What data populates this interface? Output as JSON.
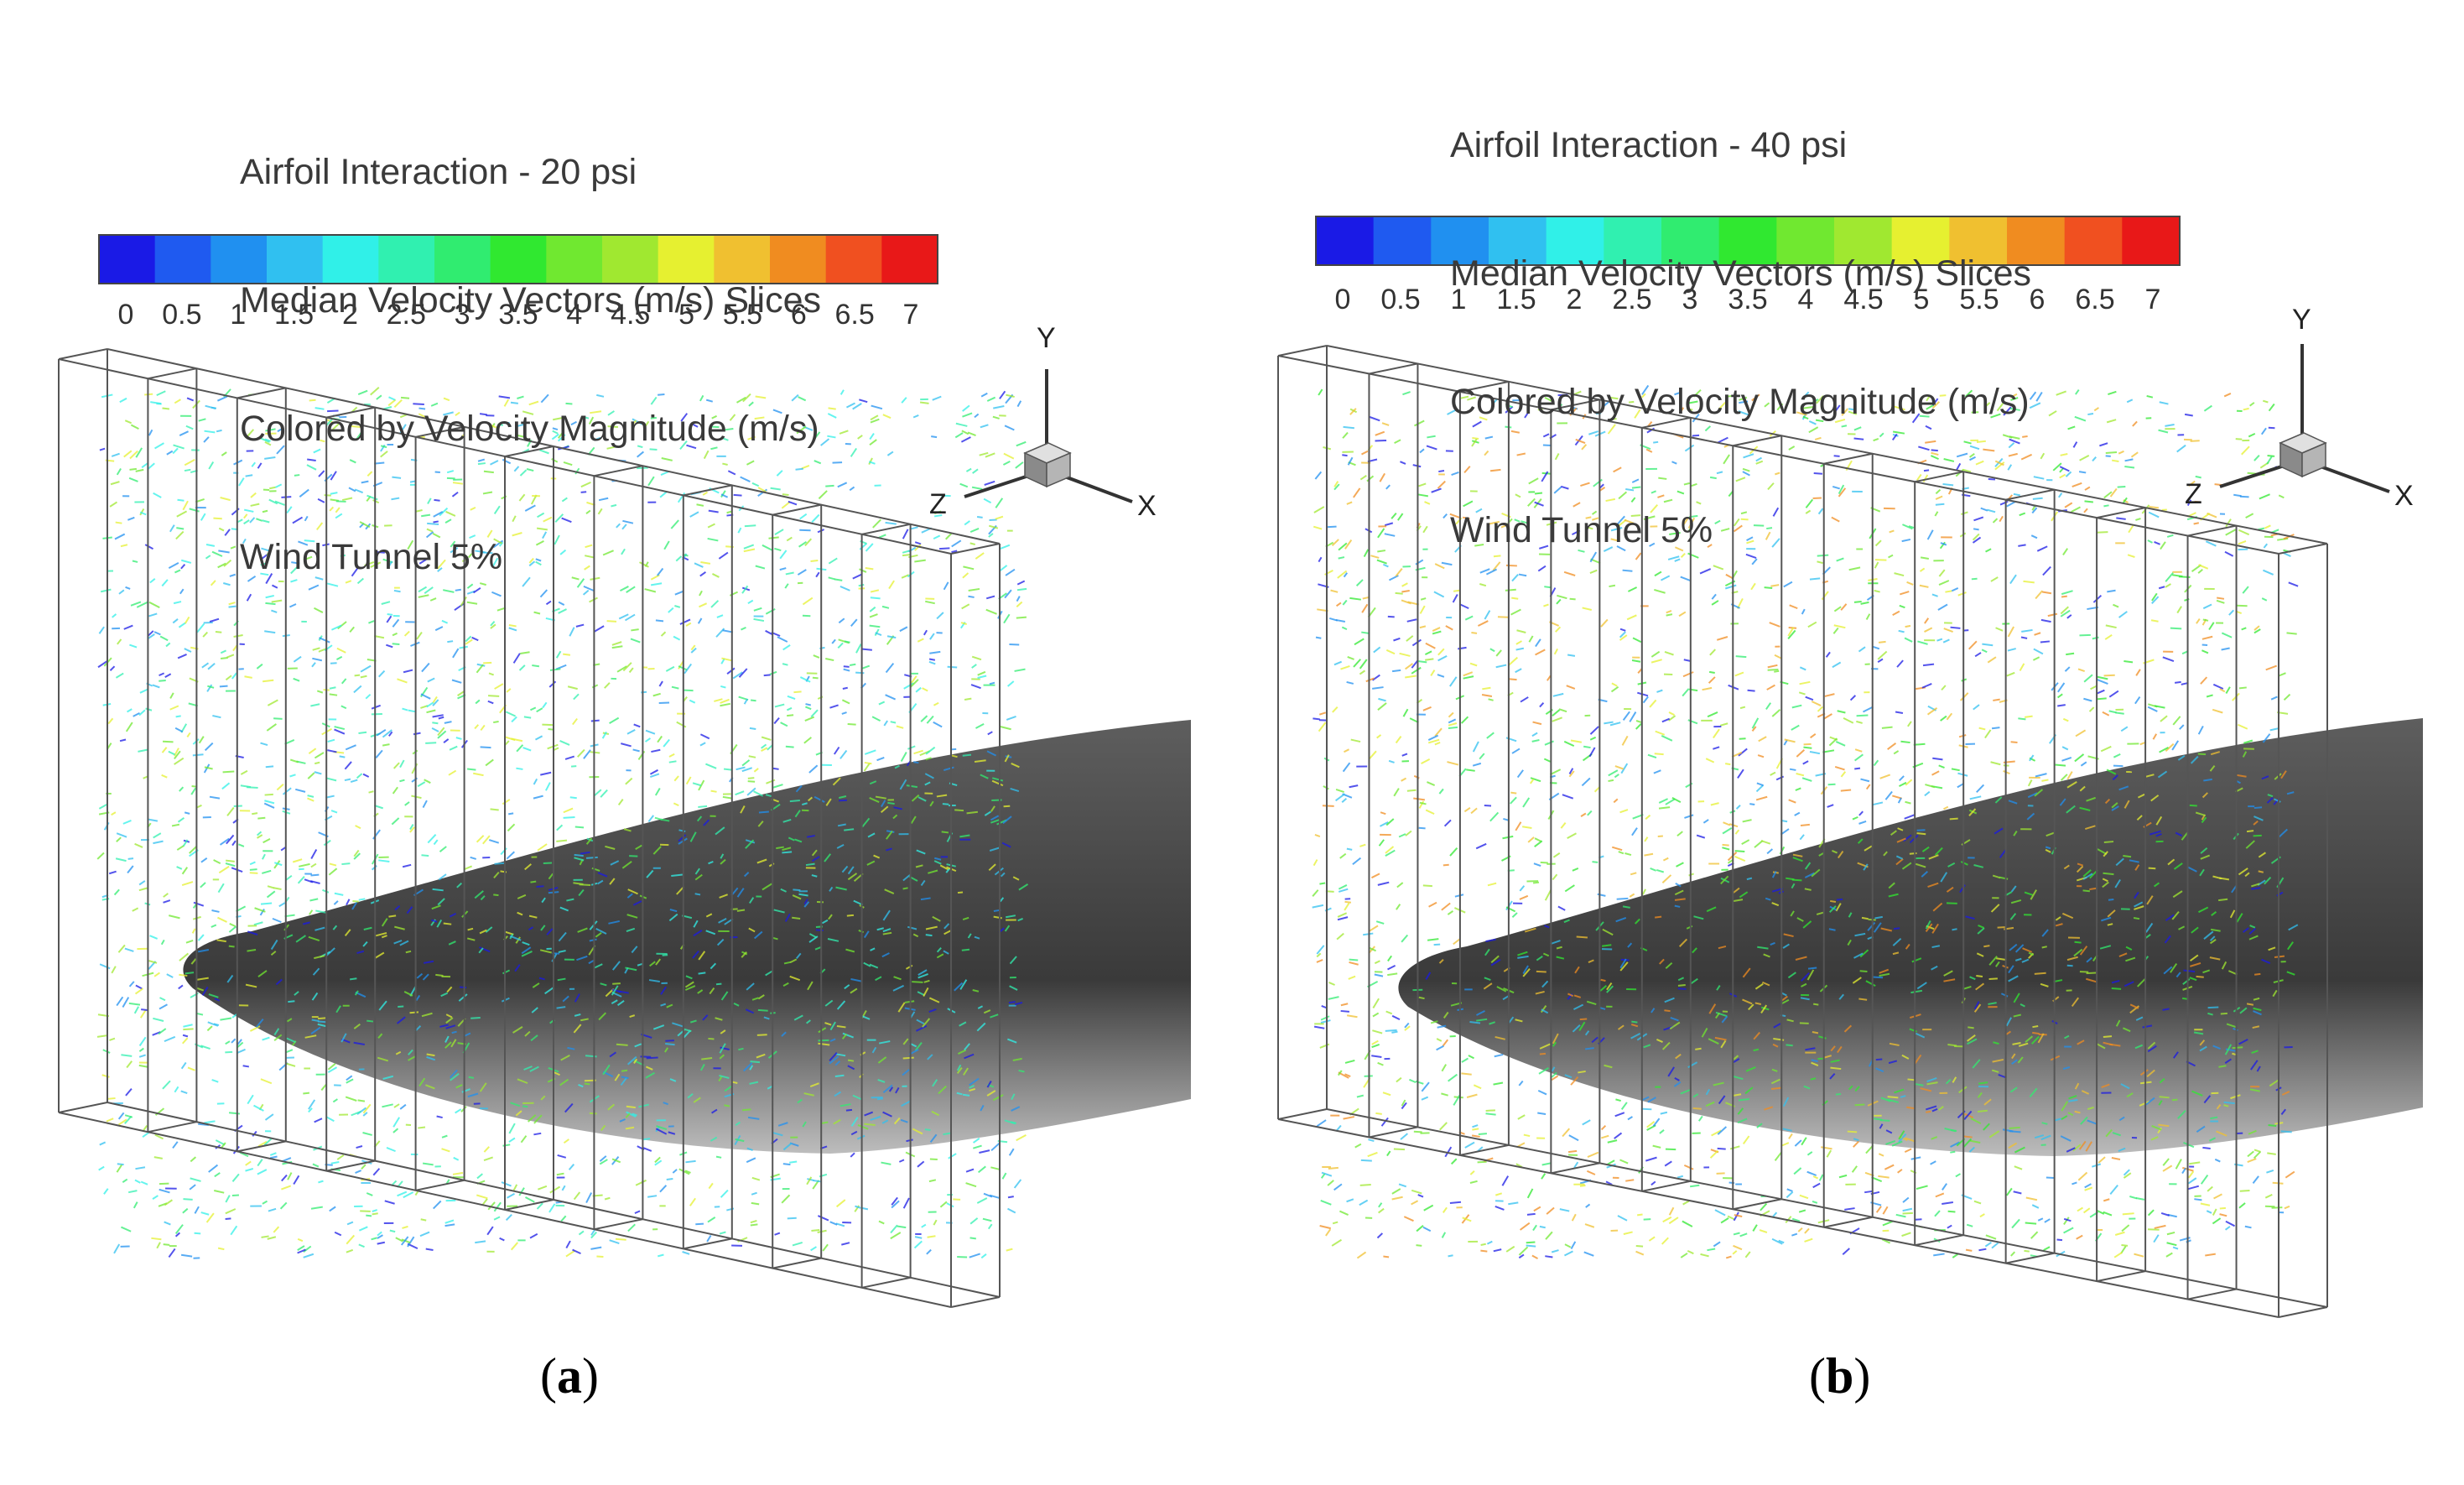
{
  "panels": [
    {
      "id": "a",
      "title_lines": [
        "Airfoil Interaction - 20 psi",
        "Median Velocity Vectors (m/s) Slices",
        "Colored by Velocity Magnitude (m/s)",
        "Wind Tunnel 5%"
      ],
      "caption_letter": "a"
    },
    {
      "id": "b",
      "title_lines": [
        "Airfoil Interaction - 40 psi",
        "Median Velocity Vectors (m/s) Slices",
        "Colored by Velocity Magnitude (m/s)",
        "Wind Tunnel 5%"
      ],
      "caption_letter": "b"
    }
  ],
  "colorbar": {
    "ticks": [
      "0",
      "0.5",
      "1",
      "1.5",
      "2",
      "2.5",
      "3",
      "3.5",
      "4",
      "4.5",
      "5",
      "5.5",
      "6",
      "6.5",
      "7"
    ],
    "colors": [
      "#1a1ae6",
      "#1f5af0",
      "#2090f0",
      "#30c0f0",
      "#30f0e8",
      "#30f0b0",
      "#30ec70",
      "#30e830",
      "#70e830",
      "#a0e830",
      "#e6f030",
      "#f0c030",
      "#f08c20",
      "#f05020",
      "#e81818"
    ]
  },
  "axes": {
    "x": "X",
    "y": "Y",
    "z": "Z"
  }
}
